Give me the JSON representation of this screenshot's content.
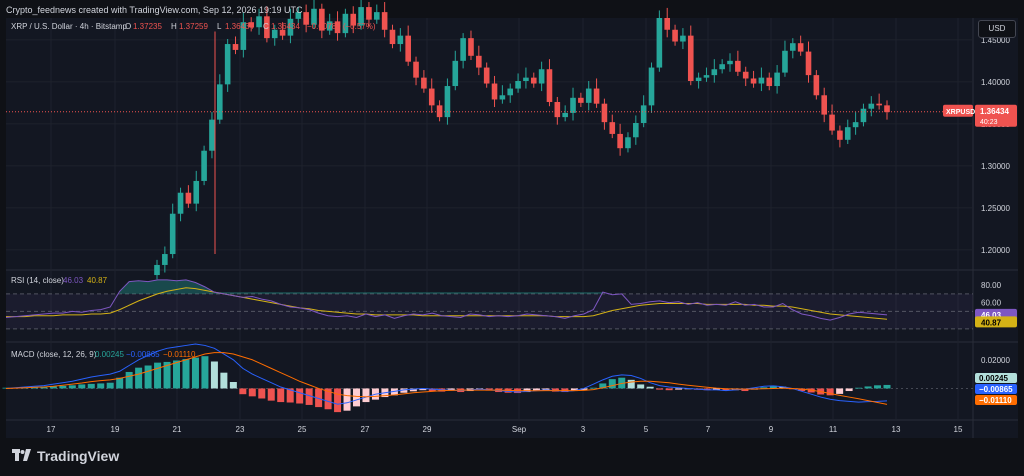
{
  "header": {
    "creator": "Crypto_feednews created with TradingView.com, Sep 12, 2026 19:19 UTC"
  },
  "currency_button": "USD",
  "brand": {
    "name": "TradingView",
    "icon": "tradingview-logo-icon"
  },
  "colors": {
    "bg": "#131722",
    "up": "#26a69a",
    "down": "#ef5350",
    "rsi": "#7e57c2",
    "rsi_ma": "#d4b216",
    "macd": "#2962ff",
    "signal": "#ff6d00",
    "text": "#d1d4dc",
    "grid": "#1e222d"
  },
  "chart_data": [
    {
      "type": "candlestick",
      "title": "XRP / U.S. Dollar · 4h · Bitstamp",
      "ohlc_label": {
        "o_label": "O",
        "o": "1.37235",
        "h_label": "H",
        "h": "1.37259",
        "l_label": "L",
        "l": "1.36434",
        "c_label": "C",
        "c": "1.36434",
        "change": "−0.00789 (−0.57%)"
      },
      "symbol_tag": "XRPUSD",
      "last_price": "1.36434",
      "countdown": "40:23",
      "yticks": [
        "1.45000",
        "1.40000",
        "1.35000",
        "1.30000",
        "1.25000",
        "1.20000"
      ],
      "xticks": [
        "17",
        "19",
        "21",
        "23",
        "25",
        "27",
        "29",
        "Sep",
        "3",
        "5",
        "7",
        "9",
        "11",
        "13",
        "15"
      ],
      "close_series": [
        1.182,
        1.195,
        1.243,
        1.268,
        1.255,
        1.282,
        1.318,
        1.355,
        1.397,
        1.445,
        1.438,
        1.471,
        1.465,
        1.478,
        1.452,
        1.462,
        1.455,
        1.475,
        1.483,
        1.468,
        1.487,
        1.461,
        1.472,
        1.458,
        1.481,
        1.467,
        1.489,
        1.474,
        1.483,
        1.462,
        1.445,
        1.455,
        1.424,
        1.405,
        1.392,
        1.372,
        1.358,
        1.395,
        1.425,
        1.452,
        1.431,
        1.417,
        1.398,
        1.379,
        1.384,
        1.392,
        1.401,
        1.405,
        1.398,
        1.415,
        1.376,
        1.358,
        1.363,
        1.381,
        1.375,
        1.392,
        1.374,
        1.352,
        1.338,
        1.321,
        1.334,
        1.351,
        1.372,
        1.417,
        1.476,
        1.462,
        1.448,
        1.455,
        1.401,
        1.405,
        1.408,
        1.415,
        1.421,
        1.425,
        1.412,
        1.404,
        1.398,
        1.405,
        1.395,
        1.411,
        1.437,
        1.446,
        1.436,
        1.408,
        1.384,
        1.361,
        1.342,
        1.331,
        1.346,
        1.352,
        1.368,
        1.374,
        1.372,
        1.364
      ]
    },
    {
      "type": "line",
      "title": "RSI (14, close)",
      "legend_values": [
        "46.03",
        "40.87"
      ],
      "yticks": [
        "80.00",
        "60.00"
      ],
      "last_values": [
        "46.03",
        "40.87"
      ],
      "bands": [
        70,
        50,
        30
      ],
      "ylim": [
        15,
        95
      ],
      "rsi_series": [
        43,
        44,
        45,
        46,
        47,
        48,
        48,
        50,
        49,
        51,
        52,
        55,
        73,
        84,
        85,
        84,
        86,
        86,
        85,
        86,
        83,
        78,
        72,
        70,
        68,
        66,
        67,
        64,
        62,
        58,
        55,
        54,
        52,
        48,
        45,
        44,
        45,
        43,
        47,
        44,
        46,
        42,
        45,
        47,
        46,
        48,
        45,
        44,
        43,
        47,
        46,
        44,
        45,
        44,
        45,
        47,
        46,
        45,
        44,
        42,
        45,
        47,
        52,
        72,
        69,
        70,
        58,
        59,
        61,
        62,
        60,
        61,
        58,
        60,
        57,
        58,
        57,
        61,
        57,
        58,
        55,
        55,
        59,
        52,
        47,
        45,
        42,
        40,
        43,
        47,
        49,
        48,
        47,
        46
      ],
      "ma_series": [
        44,
        44,
        44,
        45,
        45,
        45,
        46,
        46,
        46,
        47,
        47,
        48,
        52,
        57,
        62,
        66,
        70,
        73,
        75,
        77,
        76,
        74,
        72,
        70,
        68,
        66,
        64,
        62,
        60,
        58,
        56,
        54,
        53,
        51,
        50,
        49,
        48,
        47,
        47,
        46,
        46,
        46,
        46,
        46,
        45,
        45,
        45,
        45,
        45,
        45,
        45,
        45,
        45,
        45,
        45,
        45,
        45,
        45,
        44,
        44,
        44,
        44,
        45,
        48,
        51,
        53,
        55,
        57,
        58,
        59,
        59,
        59,
        59,
        59,
        58,
        58,
        58,
        58,
        58,
        57,
        57,
        56,
        56,
        55,
        53,
        51,
        49,
        47,
        46,
        45,
        44,
        43,
        42,
        41
      ]
    },
    {
      "type": "bar",
      "title": "MACD (close, 12, 26, 9)",
      "legend_values": [
        "0.00245",
        "−0.00865",
        "−0.01110"
      ],
      "yticks": [
        "0.02000"
      ],
      "last_values": [
        "0.00245",
        "−0.00865",
        "−0.01110"
      ],
      "ylim": [
        -0.022,
        0.031
      ],
      "histogram": [
        0.0005,
        0.0006,
        0.0008,
        0.001,
        0.0012,
        0.0015,
        0.0018,
        0.0022,
        0.0028,
        0.0032,
        0.0035,
        0.004,
        0.0075,
        0.0115,
        0.0145,
        0.016,
        0.018,
        0.0185,
        0.0195,
        0.0205,
        0.0215,
        0.0225,
        0.0188,
        0.011,
        0.0045,
        -0.004,
        -0.0055,
        -0.007,
        -0.0085,
        -0.0095,
        -0.0098,
        -0.0105,
        -0.0115,
        -0.013,
        -0.0145,
        -0.0165,
        -0.0155,
        -0.0125,
        -0.0095,
        -0.0078,
        -0.006,
        -0.0048,
        -0.003,
        -0.002,
        -0.0012,
        -0.0018,
        -0.0022,
        -0.0015,
        -0.0025,
        -0.0018,
        -0.0008,
        -0.0015,
        -0.0025,
        -0.003,
        -0.0032,
        -0.0025,
        -0.0018,
        -0.0012,
        -0.0022,
        -0.0025,
        -0.0018,
        -0.001,
        0.0005,
        0.0035,
        0.0065,
        0.0075,
        0.006,
        0.0028,
        0.0012,
        -0.0008,
        -0.0012,
        -0.0008,
        -0.0005,
        -0.0009,
        -0.0012,
        -0.0008,
        -0.0015,
        -0.0012,
        -0.0018,
        -0.0008,
        0.0008,
        0.0018,
        0.0012,
        -0.0003,
        -0.0018,
        -0.0028,
        -0.0042,
        -0.0048,
        -0.0038,
        -0.0018,
        0.0005,
        0.0014,
        0.0022,
        0.00245
      ],
      "macd_line": [
        0,
        0.0005,
        0.001,
        0.0015,
        0.002,
        0.003,
        0.004,
        0.005,
        0.0065,
        0.008,
        0.009,
        0.01,
        0.012,
        0.016,
        0.02,
        0.023,
        0.026,
        0.028,
        0.029,
        0.03,
        0.031,
        0.03,
        0.028,
        0.024,
        0.02,
        0.014,
        0.01,
        0.007,
        0.004,
        0.001,
        -0.001,
        -0.003,
        -0.005,
        -0.007,
        -0.009,
        -0.011,
        -0.01,
        -0.008,
        -0.006,
        -0.004,
        -0.003,
        -0.002,
        -0.001,
        -0.0005,
        0,
        -0.0005,
        -0.001,
        -0.0012,
        -0.0015,
        -0.001,
        -0.0005,
        -0.001,
        -0.0015,
        -0.002,
        -0.0025,
        -0.002,
        -0.0015,
        -0.001,
        -0.0015,
        -0.002,
        -0.0015,
        0,
        0.003,
        0.006,
        0.0085,
        0.0095,
        0.009,
        0.007,
        0.004,
        0.002,
        0.001,
        0.0005,
        0,
        -0.0005,
        -0.001,
        -0.001,
        -0.0015,
        -0.001,
        -0.0005,
        0.0005,
        0.0015,
        0.0018,
        0.0012,
        0,
        -0.002,
        -0.004,
        -0.006,
        -0.0075,
        -0.0085,
        -0.009,
        -0.0095,
        -0.0092,
        -0.009,
        -0.00865
      ],
      "signal_line": [
        0,
        0.0002,
        0.0005,
        0.0008,
        0.001,
        0.0015,
        0.0022,
        0.003,
        0.0038,
        0.0048,
        0.0055,
        0.006,
        0.007,
        0.0085,
        0.01,
        0.012,
        0.014,
        0.016,
        0.018,
        0.02,
        0.022,
        0.024,
        0.025,
        0.025,
        0.024,
        0.022,
        0.02,
        0.017,
        0.014,
        0.011,
        0.008,
        0.005,
        0.0025,
        0,
        -0.002,
        -0.004,
        -0.005,
        -0.0055,
        -0.0058,
        -0.0055,
        -0.005,
        -0.0045,
        -0.0038,
        -0.003,
        -0.0025,
        -0.002,
        -0.0015,
        -0.0013,
        -0.0012,
        -0.0012,
        -0.0012,
        -0.0012,
        -0.0012,
        -0.0013,
        -0.0015,
        -0.0016,
        -0.0016,
        -0.0015,
        -0.0015,
        -0.0015,
        -0.0015,
        -0.0013,
        -0.0008,
        0.0005,
        0.002,
        0.0035,
        0.0045,
        0.005,
        0.005,
        0.0045,
        0.004,
        0.003,
        0.0022,
        0.0015,
        0.0008,
        0.0002,
        -0.0002,
        -0.0004,
        -0.0005,
        -0.0004,
        -0.0002,
        0,
        0.0002,
        0,
        -0.0004,
        -0.0012,
        -0.0022,
        -0.0035,
        -0.0048,
        -0.006,
        -0.0072,
        -0.0085,
        -0.0098,
        -0.0111
      ]
    }
  ]
}
